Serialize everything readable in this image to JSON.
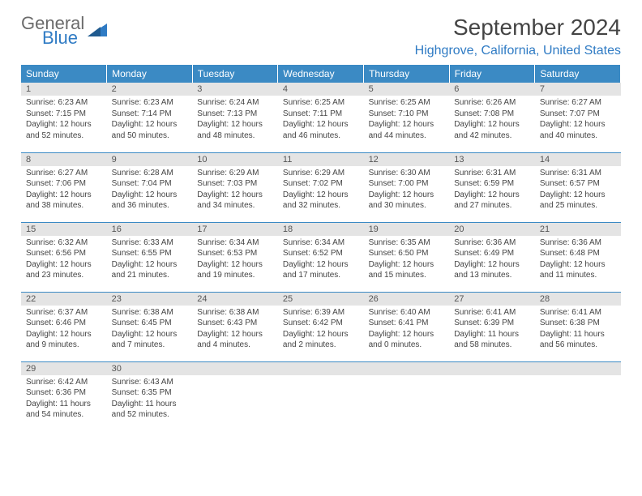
{
  "logo": {
    "general": "General",
    "blue": "Blue"
  },
  "title": "September 2024",
  "location": "Highgrove, California, United States",
  "colors": {
    "header_bg": "#3b8ac4",
    "header_fg": "#ffffff",
    "accent": "#2f7bc4",
    "daynum_bg": "#e4e4e4",
    "text": "#444444"
  },
  "weekdays": [
    "Sunday",
    "Monday",
    "Tuesday",
    "Wednesday",
    "Thursday",
    "Friday",
    "Saturday"
  ],
  "weeks": [
    [
      {
        "n": "1",
        "sr": "6:23 AM",
        "ss": "7:15 PM",
        "dl": "12 hours and 52 minutes."
      },
      {
        "n": "2",
        "sr": "6:23 AM",
        "ss": "7:14 PM",
        "dl": "12 hours and 50 minutes."
      },
      {
        "n": "3",
        "sr": "6:24 AM",
        "ss": "7:13 PM",
        "dl": "12 hours and 48 minutes."
      },
      {
        "n": "4",
        "sr": "6:25 AM",
        "ss": "7:11 PM",
        "dl": "12 hours and 46 minutes."
      },
      {
        "n": "5",
        "sr": "6:25 AM",
        "ss": "7:10 PM",
        "dl": "12 hours and 44 minutes."
      },
      {
        "n": "6",
        "sr": "6:26 AM",
        "ss": "7:08 PM",
        "dl": "12 hours and 42 minutes."
      },
      {
        "n": "7",
        "sr": "6:27 AM",
        "ss": "7:07 PM",
        "dl": "12 hours and 40 minutes."
      }
    ],
    [
      {
        "n": "8",
        "sr": "6:27 AM",
        "ss": "7:06 PM",
        "dl": "12 hours and 38 minutes."
      },
      {
        "n": "9",
        "sr": "6:28 AM",
        "ss": "7:04 PM",
        "dl": "12 hours and 36 minutes."
      },
      {
        "n": "10",
        "sr": "6:29 AM",
        "ss": "7:03 PM",
        "dl": "12 hours and 34 minutes."
      },
      {
        "n": "11",
        "sr": "6:29 AM",
        "ss": "7:02 PM",
        "dl": "12 hours and 32 minutes."
      },
      {
        "n": "12",
        "sr": "6:30 AM",
        "ss": "7:00 PM",
        "dl": "12 hours and 30 minutes."
      },
      {
        "n": "13",
        "sr": "6:31 AM",
        "ss": "6:59 PM",
        "dl": "12 hours and 27 minutes."
      },
      {
        "n": "14",
        "sr": "6:31 AM",
        "ss": "6:57 PM",
        "dl": "12 hours and 25 minutes."
      }
    ],
    [
      {
        "n": "15",
        "sr": "6:32 AM",
        "ss": "6:56 PM",
        "dl": "12 hours and 23 minutes."
      },
      {
        "n": "16",
        "sr": "6:33 AM",
        "ss": "6:55 PM",
        "dl": "12 hours and 21 minutes."
      },
      {
        "n": "17",
        "sr": "6:34 AM",
        "ss": "6:53 PM",
        "dl": "12 hours and 19 minutes."
      },
      {
        "n": "18",
        "sr": "6:34 AM",
        "ss": "6:52 PM",
        "dl": "12 hours and 17 minutes."
      },
      {
        "n": "19",
        "sr": "6:35 AM",
        "ss": "6:50 PM",
        "dl": "12 hours and 15 minutes."
      },
      {
        "n": "20",
        "sr": "6:36 AM",
        "ss": "6:49 PM",
        "dl": "12 hours and 13 minutes."
      },
      {
        "n": "21",
        "sr": "6:36 AM",
        "ss": "6:48 PM",
        "dl": "12 hours and 11 minutes."
      }
    ],
    [
      {
        "n": "22",
        "sr": "6:37 AM",
        "ss": "6:46 PM",
        "dl": "12 hours and 9 minutes."
      },
      {
        "n": "23",
        "sr": "6:38 AM",
        "ss": "6:45 PM",
        "dl": "12 hours and 7 minutes."
      },
      {
        "n": "24",
        "sr": "6:38 AM",
        "ss": "6:43 PM",
        "dl": "12 hours and 4 minutes."
      },
      {
        "n": "25",
        "sr": "6:39 AM",
        "ss": "6:42 PM",
        "dl": "12 hours and 2 minutes."
      },
      {
        "n": "26",
        "sr": "6:40 AM",
        "ss": "6:41 PM",
        "dl": "12 hours and 0 minutes."
      },
      {
        "n": "27",
        "sr": "6:41 AM",
        "ss": "6:39 PM",
        "dl": "11 hours and 58 minutes."
      },
      {
        "n": "28",
        "sr": "6:41 AM",
        "ss": "6:38 PM",
        "dl": "11 hours and 56 minutes."
      }
    ],
    [
      {
        "n": "29",
        "sr": "6:42 AM",
        "ss": "6:36 PM",
        "dl": "11 hours and 54 minutes."
      },
      {
        "n": "30",
        "sr": "6:43 AM",
        "ss": "6:35 PM",
        "dl": "11 hours and 52 minutes."
      },
      null,
      null,
      null,
      null,
      null
    ]
  ],
  "labels": {
    "sunrise": "Sunrise:",
    "sunset": "Sunset:",
    "daylight": "Daylight:"
  }
}
